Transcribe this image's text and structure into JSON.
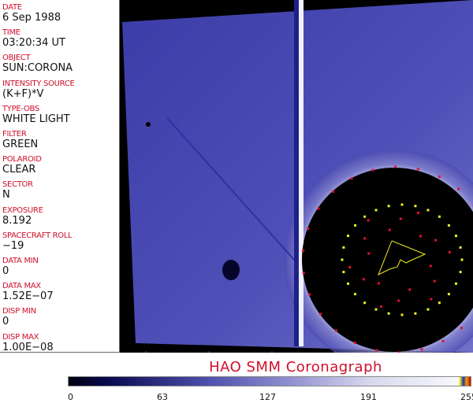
{
  "fields": [
    {
      "label": "DATE",
      "value": "6 Sep 1988"
    },
    {
      "label": "TIME",
      "value": "03:20:34 UT"
    },
    {
      "label": "OBJECT",
      "value": "SUN:CORONA"
    },
    {
      "label": "INTENSITY SOURCE",
      "value": "(K+F)*V"
    },
    {
      "label": "TYPE-OBS",
      "value": "WHITE LIGHT"
    },
    {
      "label": "FILTER",
      "value": "GREEN"
    },
    {
      "label": "POLAROID",
      "value": "CLEAR"
    },
    {
      "label": "SECTOR",
      "value": "N"
    },
    {
      "label": "EXPOSURE",
      "value": "8.192"
    },
    {
      "label": "SPACECRAFT ROLL",
      "value": "−19"
    },
    {
      "label": "DATA MIN",
      "value": "0"
    },
    {
      "label": "DATA MAX",
      "value": "1.52E−07"
    },
    {
      "label": "DISP MIN",
      "value": "0"
    },
    {
      "label": "DISP MAX",
      "value": "1.00E−08"
    }
  ],
  "title": "HAO   SMM  Coronagraph",
  "colorbar": {
    "ticks": [
      "0",
      "63",
      "127",
      "191",
      "255"
    ],
    "colors": {
      "low": "#000010",
      "mid": "#5050b0",
      "high": "#f8f8fc"
    }
  },
  "overlay_colors": {
    "outer_dots": "#e01030",
    "inner_ring": "#f0f020",
    "polygon": "#f0f020"
  }
}
